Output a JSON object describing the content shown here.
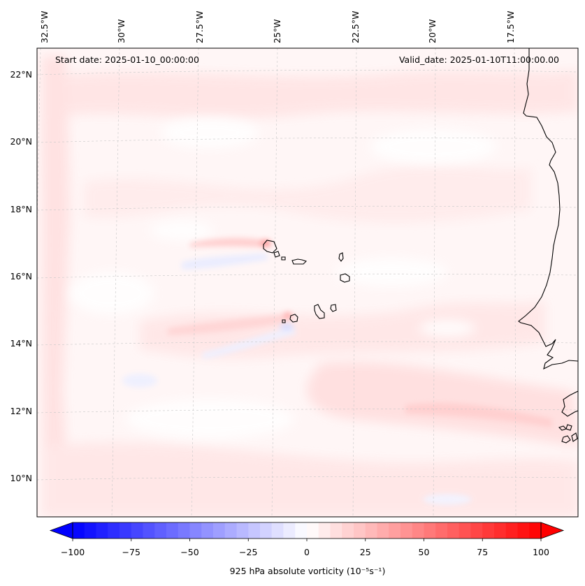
{
  "map": {
    "start_date": "Start date: 2025-01-10_00:00:00",
    "valid_date": "Valid_date: 2025-01-10T11:00:00.00",
    "lon_labels": [
      "32.5°W",
      "30°W",
      "27.5°W",
      "25°W",
      "22.5°W",
      "20°W",
      "17.5°W"
    ],
    "lat_labels": [
      "22°N",
      "20°N",
      "18°N",
      "16°N",
      "14°N",
      "12°N",
      "10°N"
    ],
    "gridlines": true,
    "coastline_color": "#000000"
  },
  "colorbar": {
    "ticks": [
      "−100",
      "−75",
      "−50",
      "−25",
      "0",
      "25",
      "50",
      "75",
      "100"
    ],
    "label": "925 hPa absolute vorticity (10⁻⁵s⁻¹)",
    "min_color": "#0000ff",
    "mid_color": "#ffffff",
    "max_color": "#ff0000",
    "extend": "both"
  },
  "field_colors": {
    "background": "#fff6f6",
    "light_red": "#ffe4e4",
    "medium_red": "#ffcccc",
    "light_blue": "#eef0ff",
    "white": "#ffffff"
  }
}
